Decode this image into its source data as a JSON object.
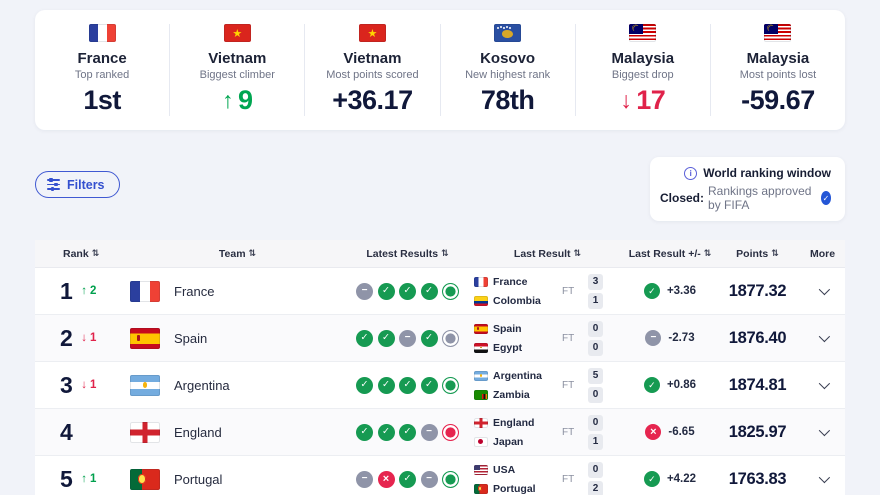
{
  "colors": {
    "accent_green": "#00a651",
    "accent_red": "#e0224a",
    "accent_blue": "#3450cf",
    "dark_navy": "#10183a",
    "verified_blue": "#2456d6"
  },
  "stats": [
    {
      "country": "France",
      "label": "Top ranked",
      "value": "1st",
      "tone": "dark"
    },
    {
      "country": "Vietnam",
      "label": "Biggest climber",
      "value": "9",
      "tone": "green",
      "arrow": "up"
    },
    {
      "country": "Vietnam",
      "label": "Most points scored",
      "value": "+36.17",
      "tone": "dark"
    },
    {
      "country": "Kosovo",
      "label": "New highest rank",
      "value": "78th",
      "tone": "dark"
    },
    {
      "country": "Malaysia",
      "label": "Biggest drop",
      "value": "17",
      "tone": "red",
      "arrow": "down"
    },
    {
      "country": "Malaysia",
      "label": "Most points lost",
      "value": "-59.67",
      "tone": "dark"
    }
  ],
  "filters": {
    "label": "Filters"
  },
  "ranking_window": {
    "title": "World ranking window",
    "status_label": "Closed:",
    "status_text": "Rankings approved by FIFA"
  },
  "table": {
    "headers": {
      "rank": "Rank",
      "team": "Team",
      "latest": "Latest Results",
      "last": "Last Result",
      "delta": "Last Result +/-",
      "points": "Points",
      "more": "More"
    },
    "rows": [
      {
        "rank": "1",
        "move": "up",
        "move_value": "2",
        "team": "France",
        "latest": [
          "draw",
          "win",
          "win",
          "win",
          "win-last"
        ],
        "last": {
          "home": "France",
          "away": "Colombia",
          "status": "FT",
          "home_score": "3",
          "away_score": "1"
        },
        "delta": {
          "icon": "win",
          "value": "+3.36"
        },
        "points": "1877.32"
      },
      {
        "rank": "2",
        "move": "down",
        "move_value": "1",
        "team": "Spain",
        "latest": [
          "win",
          "win",
          "draw",
          "win",
          "draw-last"
        ],
        "last": {
          "home": "Spain",
          "away": "Egypt",
          "status": "FT",
          "home_score": "0",
          "away_score": "0"
        },
        "delta": {
          "icon": "draw",
          "value": "-2.73"
        },
        "points": "1876.40"
      },
      {
        "rank": "3",
        "move": "down",
        "move_value": "1",
        "team": "Argentina",
        "latest": [
          "win",
          "win",
          "win",
          "win",
          "win-last"
        ],
        "last": {
          "home": "Argentina",
          "away": "Zambia",
          "status": "FT",
          "home_score": "5",
          "away_score": "0"
        },
        "delta": {
          "icon": "win",
          "value": "+0.86"
        },
        "points": "1874.81"
      },
      {
        "rank": "4",
        "move": "",
        "move_value": "",
        "team": "England",
        "latest": [
          "win",
          "win",
          "win",
          "draw",
          "loss-last"
        ],
        "last": {
          "home": "England",
          "away": "Japan",
          "status": "FT",
          "home_score": "0",
          "away_score": "1"
        },
        "delta": {
          "icon": "loss",
          "value": "-6.65"
        },
        "points": "1825.97"
      },
      {
        "rank": "5",
        "move": "up",
        "move_value": "1",
        "team": "Portugal",
        "latest": [
          "draw",
          "loss",
          "win",
          "draw",
          "win-last"
        ],
        "last": {
          "home": "USA",
          "away": "Portugal",
          "status": "FT",
          "home_score": "0",
          "away_score": "2"
        },
        "delta": {
          "icon": "win",
          "value": "+4.22"
        },
        "points": "1763.83"
      }
    ]
  }
}
